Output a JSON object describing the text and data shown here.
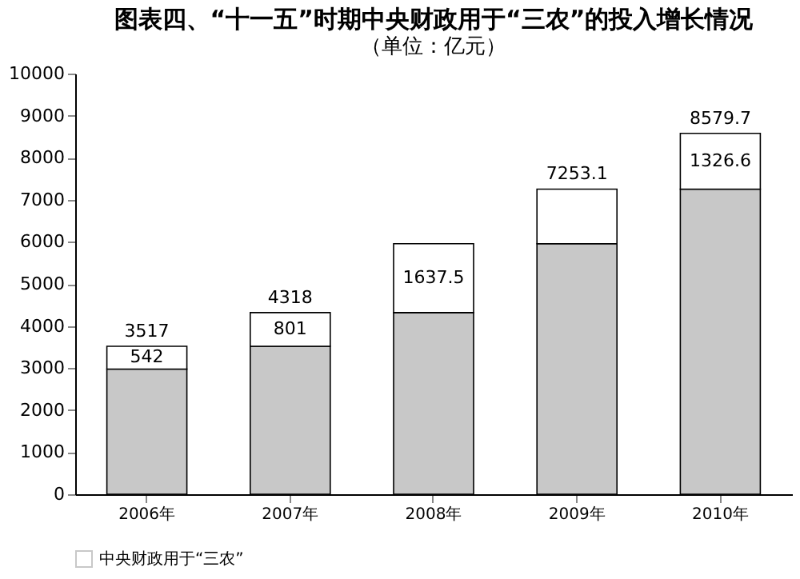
{
  "chart_data": {
    "type": "bar",
    "title": "图表四、“十一五”时期中央财政用于“三农”的投入增长情况",
    "subtitle": "（单位：亿元）",
    "categories": [
      "2006年",
      "2007年",
      "2008年",
      "2009年",
      "2010年"
    ],
    "stacked": true,
    "series": [
      {
        "name": "中央财政用于“三农”",
        "color": "#c8c8c8",
        "values": [
          2975,
          3517,
          4318,
          5955.5,
          7253.1
        ]
      },
      {
        "color": "#ffffff",
        "values": [
          542,
          801,
          1637.5,
          1297.6,
          1326.6
        ],
        "value_labels": [
          "542",
          "801",
          "1637.5",
          null,
          "1326.6"
        ]
      }
    ],
    "totals": [
      "3517",
      "4318",
      null,
      "7253.1",
      "8579.7"
    ],
    "ylim": [
      0,
      10000
    ],
    "yticks": [
      0,
      1000,
      2000,
      3000,
      4000,
      5000,
      6000,
      7000,
      8000,
      9000,
      10000
    ],
    "grid": false,
    "legend": "bottom"
  }
}
